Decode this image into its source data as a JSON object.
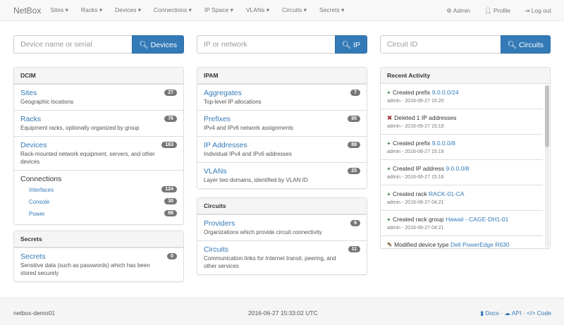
{
  "nav": {
    "brand": "NetBox",
    "items": [
      "Sites ▾",
      "Racks ▾",
      "Devices ▾",
      "Connections ▾",
      "IP Space ▾",
      "VLANs ▾",
      "Circuits ▾",
      "Secrets ▾"
    ],
    "admin": "Admin",
    "profile": "Profile",
    "logout": "Log out"
  },
  "search": [
    {
      "placeholder": "Device name or serial",
      "button": "Devices"
    },
    {
      "placeholder": "IP or network",
      "button": "IP"
    },
    {
      "placeholder": "Circuit ID",
      "button": "Circuits"
    }
  ],
  "dcim": {
    "title": "DCIM",
    "rows": [
      {
        "label": "Sites",
        "desc": "Geographic locations",
        "count": "27"
      },
      {
        "label": "Racks",
        "desc": "Equipment racks, optionally organized by group",
        "count": "76"
      },
      {
        "label": "Devices",
        "desc": "Rack-mounted network equipment, servers, and other devices",
        "count": "163"
      }
    ],
    "connections": {
      "label": "Connections",
      "items": [
        {
          "label": "Interfaces",
          "count": "124"
        },
        {
          "label": "Console",
          "count": "30"
        },
        {
          "label": "Power",
          "count": "86"
        }
      ]
    }
  },
  "secrets": {
    "title": "Secrets",
    "rows": [
      {
        "label": "Secrets",
        "desc": "Sensitive data (such as passwords) which has been stored securely",
        "count": "0"
      }
    ]
  },
  "ipam": {
    "title": "IPAM",
    "rows": [
      {
        "label": "Aggregates",
        "desc": "Top-level IP allocations",
        "count": "7"
      },
      {
        "label": "Prefixes",
        "desc": "IPv4 and IPv6 network assignments",
        "count": "95"
      },
      {
        "label": "IP Addresses",
        "desc": "Individual IPv4 and IPv6 addresses",
        "count": "88"
      },
      {
        "label": "VLANs",
        "desc": "Layer two domains, identified by VLAN ID",
        "count": "25"
      }
    ]
  },
  "circuits": {
    "title": "Circuits",
    "rows": [
      {
        "label": "Providers",
        "desc": "Organizations which provide circuit connectivity",
        "count": "6"
      },
      {
        "label": "Circuits",
        "desc": "Communication links for Internet transit, peering, and other services",
        "count": "11"
      }
    ]
  },
  "activity": {
    "title": "Recent Activity",
    "items": [
      {
        "icon": "+",
        "action": "Created prefix",
        "link": "9.0.0.0/24",
        "meta": "admin - 2016-06-27 15:20",
        "color": "#3c763d"
      },
      {
        "icon": "✖",
        "action": "Deleted 1 IP addresses",
        "link": "",
        "meta": "admin - 2016-06-27 15:19",
        "color": "#a94442"
      },
      {
        "icon": "+",
        "action": "Created prefix",
        "link": "9.0.0.0/8",
        "meta": "admin - 2016-06-27 15:19",
        "color": "#3c763d"
      },
      {
        "icon": "+",
        "action": "Created IP address",
        "link": "9.0.0.0/8",
        "meta": "admin - 2016-06-27 15:18",
        "color": "#3c763d"
      },
      {
        "icon": "+",
        "action": "Created rack",
        "link": "RACK-01-CA",
        "meta": "admin - 2016-06-27 04:21",
        "color": "#3c763d"
      },
      {
        "icon": "+",
        "action": "Created rack group",
        "link": "Hawaii - CAGE-DH1-01",
        "meta": "admin - 2016-06-27 04:21",
        "color": "#3c763d"
      },
      {
        "icon": "✎",
        "action": "Modified device type",
        "link": "Dell PowerEdge R630",
        "meta": "",
        "color": "#8a6d3b"
      }
    ]
  },
  "footer": {
    "host": "netbox-demo01",
    "time": "2016-06-27 15:33:02 UTC",
    "docs": "Docs",
    "api": "API",
    "code": "Code"
  }
}
